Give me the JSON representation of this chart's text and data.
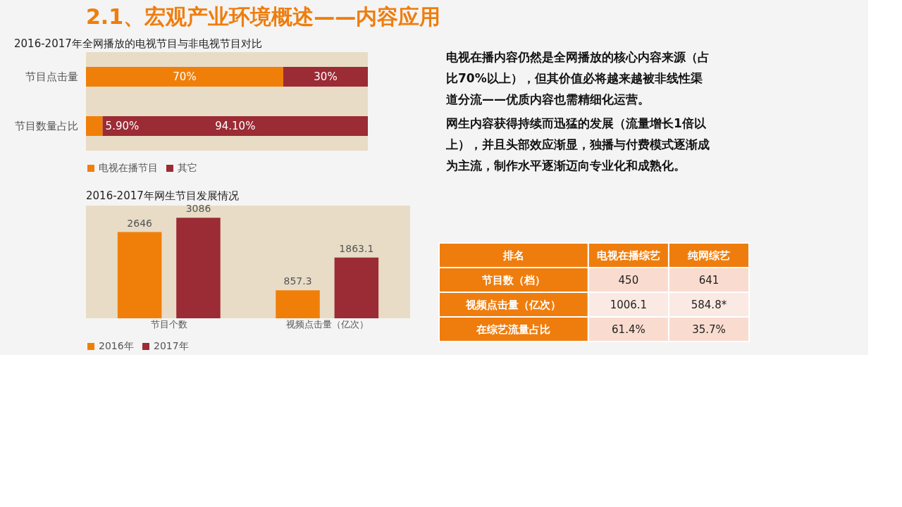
{
  "chart_data": [
    {
      "type": "other",
      "title": "2.1、宏观产业环境概述——内容应用"
    },
    {
      "type": "bar",
      "title": "2016-2017年全网播放的电视节目与非电视节目对比",
      "orientation": "horizontal",
      "stacked": true,
      "legend": "bottom",
      "categories": [
        "节目点击量",
        "节目数量占比"
      ],
      "series": [
        {
          "name": "电视在播节目",
          "color": "#f07f09",
          "values": [
            70,
            5.9
          ],
          "value_labels": [
            "70%",
            "5.90%"
          ]
        },
        {
          "name": "其它",
          "color": "#9b2b35",
          "values": [
            30,
            94.1
          ],
          "value_labels": [
            "30%",
            "94.10%"
          ]
        }
      ]
    },
    {
      "type": "bar",
      "title": "2016-2017年网生节目发展情况",
      "legend": "bottom",
      "data_labels": true,
      "categories": [
        "节目个数",
        "视频点击量（亿次）"
      ],
      "series": [
        {
          "name": "2016年",
          "color": "#f07f09",
          "values": [
            2646,
            857.3
          ]
        },
        {
          "name": "2017年",
          "color": "#9b2b35",
          "values": [
            3086,
            1863.1
          ]
        }
      ]
    },
    {
      "type": "other",
      "annotations": [
        "电视在播内容仍然是全网播放的核心内容来源（占比70%以上），但其价值必将越来越被非线性渠道分流——优质内容也需精细化运营。",
        "网生内容获得持续而迅猛的发展（流量增长1倍以上），并且头部效应渐显，独播与付费模式逐渐成为主流，制作水平逐渐迈向专业化和成熟化。"
      ]
    },
    {
      "type": "other",
      "ylabel": "排名",
      "categories": [
        "电视在播综艺",
        "纯网综艺"
      ],
      "y_categories": [
        "节目数（档）",
        "视频点击量（亿次）",
        "在综艺流量占比"
      ],
      "cell_labels": [
        [
          "450",
          "641"
        ],
        [
          "1006.1",
          "584.8*"
        ],
        [
          "61.4%",
          "35.7%"
        ]
      ]
    }
  ]
}
